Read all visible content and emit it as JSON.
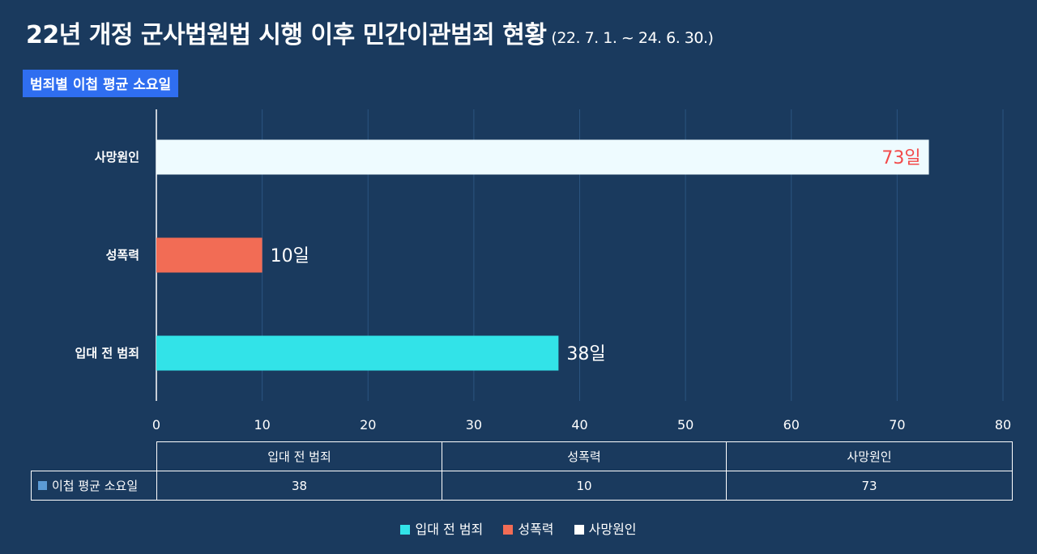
{
  "title": "22년 개정 군사법원법 시행 이후 민간이관범죄 현황",
  "subtitle": "(22. 7. 1. ~ 24. 6. 30.)",
  "badge": "범죄별 이첩 평균 소요일",
  "chart_data": {
    "type": "bar",
    "orientation": "horizontal",
    "categories": [
      "입대 전 범죄",
      "성폭력",
      "사망원인"
    ],
    "series": [
      {
        "name": "이첩 평균 소요일",
        "values": [
          38,
          10,
          73
        ]
      }
    ],
    "data_labels": [
      "38일",
      "10일",
      "73일"
    ],
    "bar_colors": [
      "#32e3e8",
      "#f26c55",
      "#eefbff"
    ],
    "label_colors": [
      "#ffffff",
      "#ffffff",
      "#f24a4a"
    ],
    "xlim": [
      0,
      80
    ],
    "xticks": [
      0,
      10,
      20,
      30,
      40,
      50,
      60,
      70,
      80
    ],
    "grid": true,
    "legend_position": "bottom"
  },
  "table": {
    "columns": [
      "입대 전 범죄",
      "성폭력",
      "사망원인"
    ],
    "row_label": "이첩 평균 소요일",
    "row_color": "#5b9bd5",
    "values": [
      "38",
      "10",
      "73"
    ]
  },
  "legend": [
    {
      "label": "입대 전 범죄",
      "color": "#32e3e8"
    },
    {
      "label": "성폭력",
      "color": "#f26c55"
    },
    {
      "label": "사망원인",
      "color": "#ffffff"
    }
  ]
}
